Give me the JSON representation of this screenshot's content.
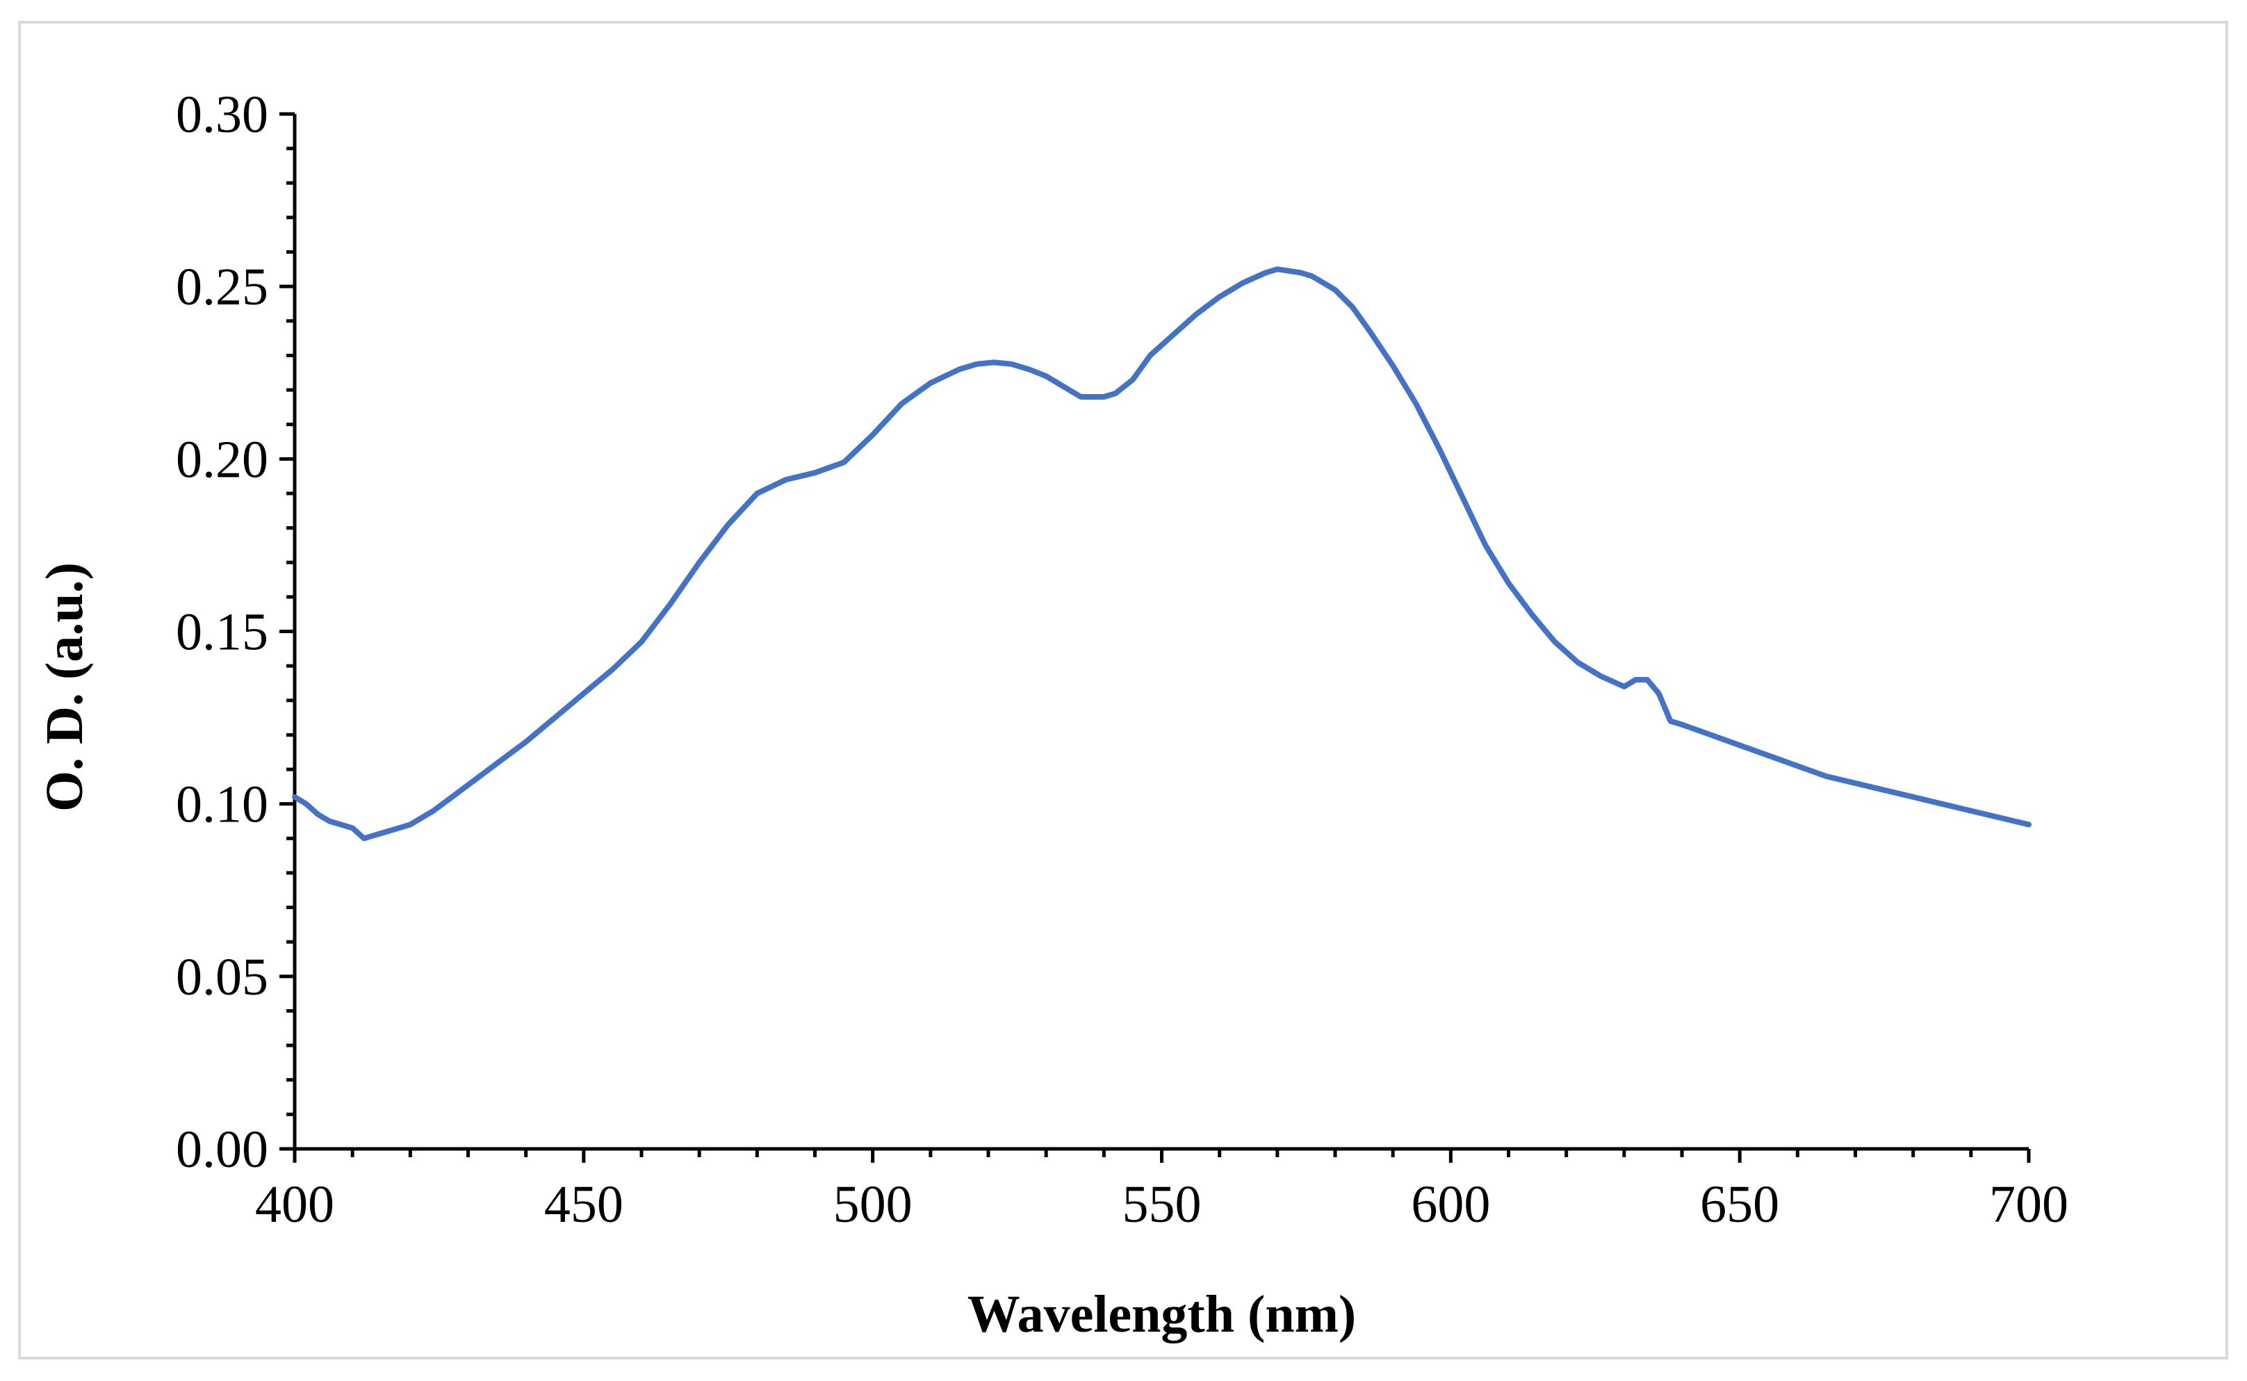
{
  "chart_data": {
    "type": "line",
    "title": "",
    "xlabel": "Wavelength (nm)",
    "ylabel": "O. D. (a.u.)",
    "xlim": [
      400,
      700
    ],
    "ylim": [
      0.0,
      0.3
    ],
    "grid": false,
    "legend": "none",
    "x_ticks": [
      400,
      450,
      500,
      550,
      600,
      650,
      700
    ],
    "x_tick_labels": [
      "400",
      "450",
      "500",
      "550",
      "600",
      "650",
      "700"
    ],
    "y_ticks": [
      0.0,
      0.05,
      0.1,
      0.15,
      0.2,
      0.25,
      0.3
    ],
    "y_tick_labels": [
      "0.00",
      "0.05",
      "0.10",
      "0.15",
      "0.20",
      "0.25",
      "0.30"
    ],
    "line_color": "#4472C4",
    "series": [
      {
        "name": "O. D.",
        "x": [
          400,
          402,
          404,
          406,
          408,
          410,
          412,
          414,
          416,
          418,
          420,
          424,
          428,
          432,
          436,
          440,
          445,
          450,
          455,
          460,
          465,
          470,
          475,
          480,
          485,
          490,
          495,
          500,
          505,
          510,
          515,
          518,
          521,
          524,
          527,
          530,
          533,
          536,
          538,
          540,
          542,
          545,
          548,
          552,
          556,
          560,
          564,
          568,
          570,
          572,
          574,
          576,
          578,
          580,
          583,
          586,
          590,
          594,
          598,
          602,
          606,
          610,
          614,
          618,
          622,
          626,
          630,
          632,
          634,
          636,
          637,
          638,
          640,
          645,
          650,
          655,
          660,
          665,
          670,
          675,
          680,
          685,
          690,
          695,
          700
        ],
        "values": [
          0.102,
          0.1,
          0.097,
          0.095,
          0.094,
          0.093,
          0.09,
          0.091,
          0.092,
          0.093,
          0.094,
          0.098,
          0.103,
          0.108,
          0.113,
          0.118,
          0.125,
          0.132,
          0.139,
          0.147,
          0.158,
          0.17,
          0.181,
          0.19,
          0.194,
          0.196,
          0.199,
          0.207,
          0.216,
          0.222,
          0.226,
          0.2275,
          0.228,
          0.2275,
          0.226,
          0.224,
          0.221,
          0.218,
          0.218,
          0.218,
          0.219,
          0.223,
          0.23,
          0.236,
          0.242,
          0.247,
          0.251,
          0.254,
          0.255,
          0.2545,
          0.254,
          0.253,
          0.251,
          0.249,
          0.244,
          0.237,
          0.227,
          0.216,
          0.203,
          0.189,
          0.175,
          0.164,
          0.155,
          0.147,
          0.141,
          0.137,
          0.134,
          0.136,
          0.136,
          0.132,
          0.128,
          0.124,
          0.123,
          0.12,
          0.117,
          0.114,
          0.111,
          0.108,
          0.106,
          0.104,
          0.102,
          0.1,
          0.098,
          0.096,
          0.094
        ]
      }
    ]
  }
}
